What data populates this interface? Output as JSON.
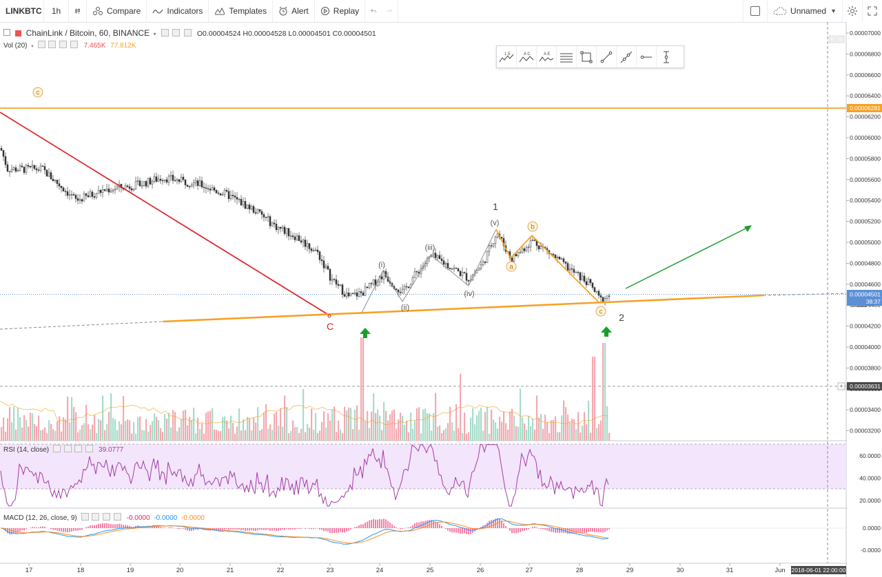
{
  "toolbar": {
    "symbol": "LINKBTC",
    "interval": "1h",
    "compare": "Compare",
    "indicators": "Indicators",
    "templates": "Templates",
    "alert": "Alert",
    "replay": "Replay",
    "layout_name": "Unnamed"
  },
  "main_legend": {
    "title": "ChainLink / Bitcoin, 60, BINANCE",
    "ohlc": "O0.00004524 H0.00004528 L0.00004501 C0.00004501",
    "vol_label": "Vol (20)",
    "vol_value1": "7.465K",
    "vol_value2": "77.812K"
  },
  "rsi_legend": {
    "label": "RSI (14, close)",
    "value": "39.0777"
  },
  "macd_legend": {
    "label": "MACD (12, 26, close, 9)",
    "v1": "-0.0000",
    "v2": "-0.0000",
    "v3": "-0.0000"
  },
  "price_axis": {
    "ticks": [
      "0.00007000",
      "0.00006800",
      "0.00006600",
      "0.00006400",
      "0.00006200",
      "0.00006000",
      "0.00005800",
      "0.00005600",
      "0.00005400",
      "0.00005200",
      "0.00005000",
      "0.00004800",
      "0.00004600",
      "0.00004400",
      "0.00004200",
      "0.00004000",
      "0.00003800",
      "0.00003600",
      "0.00003400",
      "0.00003200"
    ],
    "hline_label": "0.00006281",
    "last_price": "0.00004501",
    "countdown": "38:37",
    "crosshair_price": "0.00003631",
    "hidden_tick": "0.000"
  },
  "rsi_axis": {
    "ticks": [
      "60.0000",
      "40.0000",
      "20.0000"
    ]
  },
  "macd_axis": {
    "ticks": [
      "0.0000",
      "-0.0000"
    ]
  },
  "time_axis": {
    "ticks": [
      "17",
      "18",
      "19",
      "20",
      "21",
      "22",
      "23",
      "24",
      "25",
      "26",
      "27",
      "28",
      "29",
      "30",
      "31",
      "Jun"
    ],
    "crosshair_time": "2018-06-01 22:00:00"
  },
  "annotations": {
    "c_top": "c",
    "big_C": "C",
    "wave1": "1",
    "wave2": "2",
    "i": "(i)",
    "ii": "(ii)",
    "iii": "(iii)",
    "iv": "(iv)",
    "v": "(v)",
    "a": "a",
    "b": "b",
    "c": "c"
  },
  "drawing_tools": [
    "elliott-impulse-icon",
    "elliott-correction-icon",
    "elliott-triangle-icon",
    "horizontal-lines-icon",
    "rectangle-icon",
    "trend-line-icon",
    "extended-line-icon",
    "horizontal-ray-icon",
    "vertical-line-icon"
  ],
  "drawing_tool_labels": [
    "1 5",
    "A C",
    "A E"
  ],
  "colors": {
    "up": "#26a69a",
    "down": "#ef5350",
    "up_vol": "#a5dcc9",
    "down_vol": "#f4a8b0",
    "orange": "#f7a125",
    "red_line": "#e0262d",
    "green_arrow": "#1aa12b",
    "rsi_line": "#a33ba5",
    "rsi_band": "#f3e5fb",
    "macd_line": "#2196f3",
    "signal_line": "#ff8c25",
    "hist": "#e91e63"
  },
  "chart_data": {
    "type": "candlestick",
    "title": "ChainLink / Bitcoin, 60, BINANCE",
    "x_range": [
      "17",
      "Jun"
    ],
    "y_range": [
      3.1e-05,
      7e-05
    ],
    "horizontal_line": 6.281e-05,
    "last_price": 4.501e-05,
    "elliott_waves": {
      "impulse": [
        {
          "label": "(i)",
          "price": 4.7e-05
        },
        {
          "label": "(ii)",
          "price": 4.47e-05
        },
        {
          "label": "(iii)",
          "price": 4.88e-05
        },
        {
          "label": "(iv)",
          "price": 4.62e-05
        },
        {
          "label": "(v)",
          "price": 5.12e-05
        }
      ],
      "correction": [
        {
          "label": "a",
          "price": 4.83e-05
        },
        {
          "label": "b",
          "price": 5.06e-05
        },
        {
          "label": "c",
          "price": 4.4e-05
        }
      ]
    },
    "rsi": {
      "value": 39.0777,
      "band": [
        30,
        70
      ]
    },
    "grid": false
  }
}
